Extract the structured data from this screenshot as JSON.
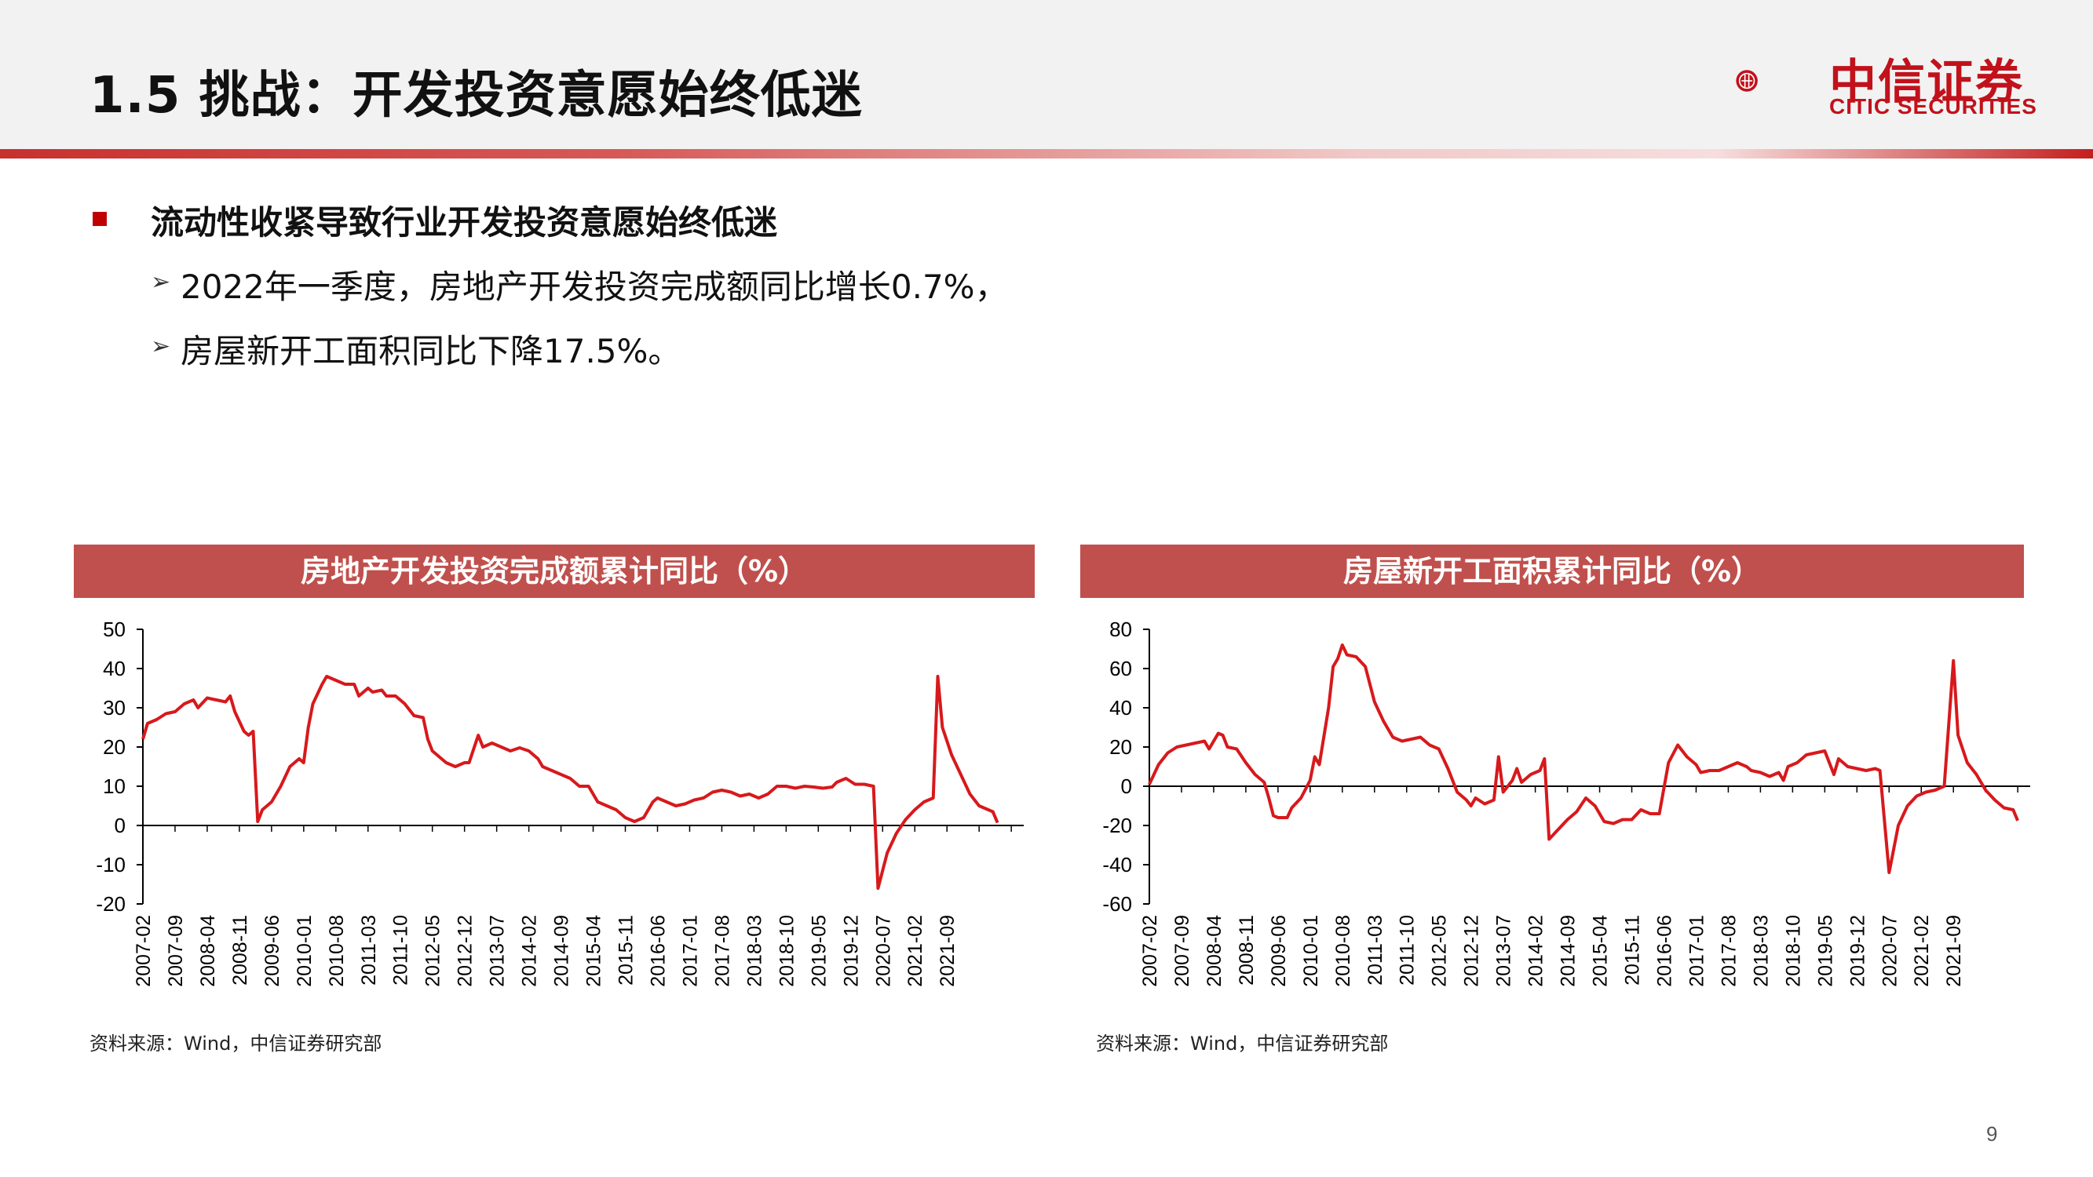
{
  "header": {
    "title": "1.5 挑战：开发投资意愿始终低迷",
    "logo_cn": "中信证券",
    "logo_en": "CITIC SECURITIES"
  },
  "body": {
    "bullet": "流动性收紧导致行业开发投资意愿始终低迷",
    "sub1": "2022年一季度，房地产开发投资完成额同比增长0.7%，",
    "sub2": "房屋新开工面积同比下降17.5%。",
    "arrow": "➢"
  },
  "page_number": "9",
  "colors": {
    "accent": "#c0504d",
    "line": "#d7191c",
    "brand": "#c1121c"
  },
  "chart_data": [
    {
      "type": "line",
      "title": "房地产开发投资完成额累计同比（%）",
      "source": "资料来源：Wind，中信证券研究部",
      "ylim": [
        -20,
        50
      ],
      "yticks": [
        50,
        40,
        30,
        20,
        10,
        0,
        -10,
        -20
      ],
      "xticks": [
        "2007-02",
        "2007-09",
        "2008-04",
        "2008-11",
        "2009-06",
        "2010-01",
        "2010-08",
        "2011-03",
        "2011-10",
        "2012-05",
        "2012-12",
        "2013-07",
        "2014-02",
        "2014-09",
        "2015-04",
        "2015-11",
        "2016-06",
        "2017-01",
        "2017-08",
        "2018-03",
        "2018-10",
        "2019-05",
        "2019-12",
        "2020-07",
        "2021-02",
        "2021-09"
      ],
      "series": [
        {
          "points": [
            [
              "2007-02",
              22
            ],
            [
              "2007-03",
              26
            ],
            [
              "2007-05",
              27
            ],
            [
              "2007-07",
              28.5
            ],
            [
              "2007-09",
              29
            ],
            [
              "2007-11",
              31
            ],
            [
              "2008-01",
              32
            ],
            [
              "2008-02",
              30
            ],
            [
              "2008-04",
              32.5
            ],
            [
              "2008-06",
              32
            ],
            [
              "2008-08",
              31.5
            ],
            [
              "2008-09",
              33
            ],
            [
              "2008-10",
              29
            ],
            [
              "2008-12",
              24
            ],
            [
              "2009-01",
              23
            ],
            [
              "2009-02",
              24
            ],
            [
              "2009-03",
              1
            ],
            [
              "2009-04",
              4
            ],
            [
              "2009-06",
              6
            ],
            [
              "2009-08",
              10
            ],
            [
              "2009-10",
              15
            ],
            [
              "2009-12",
              17
            ],
            [
              "2010-01",
              16
            ],
            [
              "2010-02",
              25
            ],
            [
              "2010-03",
              31
            ],
            [
              "2010-05",
              36
            ],
            [
              "2010-06",
              38
            ],
            [
              "2010-08",
              37
            ],
            [
              "2010-10",
              36
            ],
            [
              "2010-12",
              36
            ],
            [
              "2011-01",
              33
            ],
            [
              "2011-03",
              35
            ],
            [
              "2011-04",
              34
            ],
            [
              "2011-06",
              34.5
            ],
            [
              "2011-07",
              33
            ],
            [
              "2011-09",
              33
            ],
            [
              "2011-11",
              31
            ],
            [
              "2012-01",
              28
            ],
            [
              "2012-03",
              27.5
            ],
            [
              "2012-04",
              22
            ],
            [
              "2012-05",
              19
            ],
            [
              "2012-06",
              18
            ],
            [
              "2012-08",
              16
            ],
            [
              "2012-10",
              15
            ],
            [
              "2012-12",
              16
            ],
            [
              "2013-01",
              16
            ],
            [
              "2013-03",
              23
            ],
            [
              "2013-04",
              20
            ],
            [
              "2013-06",
              21
            ],
            [
              "2013-08",
              20
            ],
            [
              "2013-10",
              19
            ],
            [
              "2013-12",
              19.8
            ],
            [
              "2014-02",
              19
            ],
            [
              "2014-04",
              17
            ],
            [
              "2014-05",
              15
            ],
            [
              "2014-07",
              14
            ],
            [
              "2014-09",
              13
            ],
            [
              "2014-11",
              12
            ],
            [
              "2015-01",
              10
            ],
            [
              "2015-03",
              10
            ],
            [
              "2015-05",
              6
            ],
            [
              "2015-07",
              5
            ],
            [
              "2015-09",
              4
            ],
            [
              "2015-11",
              2
            ],
            [
              "2016-01",
              1
            ],
            [
              "2016-03",
              2
            ],
            [
              "2016-05",
              6
            ],
            [
              "2016-06",
              7
            ],
            [
              "2016-08",
              6
            ],
            [
              "2016-10",
              5
            ],
            [
              "2016-12",
              5.5
            ],
            [
              "2017-02",
              6.5
            ],
            [
              "2017-04",
              7
            ],
            [
              "2017-06",
              8.5
            ],
            [
              "2017-08",
              9
            ],
            [
              "2017-10",
              8.5
            ],
            [
              "2017-12",
              7.5
            ],
            [
              "2018-02",
              8
            ],
            [
              "2018-04",
              7
            ],
            [
              "2018-06",
              8
            ],
            [
              "2018-08",
              10
            ],
            [
              "2018-10",
              10
            ],
            [
              "2018-12",
              9.5
            ],
            [
              "2019-02",
              10
            ],
            [
              "2019-04",
              9.8
            ],
            [
              "2019-06",
              9.5
            ],
            [
              "2019-08",
              9.8
            ],
            [
              "2019-09",
              11
            ],
            [
              "2019-11",
              12
            ],
            [
              "2020-01",
              10.5
            ],
            [
              "2020-03",
              10.5
            ],
            [
              "2020-05",
              10
            ],
            [
              "2020-06",
              -16
            ],
            [
              "2020-08",
              -7
            ],
            [
              "2020-10",
              -2
            ],
            [
              "2020-12",
              1.5
            ],
            [
              "2021-02",
              4
            ],
            [
              "2021-04",
              6
            ],
            [
              "2021-06",
              7
            ],
            [
              "2021-07",
              38
            ],
            [
              "2021-08",
              25
            ],
            [
              "2021-10",
              18
            ],
            [
              "2021-12",
              13
            ],
            [
              "2022-02",
              8
            ],
            [
              "2022-04",
              5
            ],
            [
              "2022-06",
              4
            ],
            [
              "2022-07",
              3.5
            ],
            [
              "2022-08",
              0.7
            ]
          ]
        }
      ]
    },
    {
      "type": "line",
      "title": "房屋新开工面积累计同比（%）",
      "source": "资料来源：Wind，中信证券研究部",
      "ylim": [
        -60,
        80
      ],
      "yticks": [
        80,
        60,
        40,
        20,
        0,
        -20,
        -40,
        -60
      ],
      "xticks": [
        "2007-02",
        "2007-09",
        "2008-04",
        "2008-11",
        "2009-06",
        "2010-01",
        "2010-08",
        "2011-03",
        "2011-10",
        "2012-05",
        "2012-12",
        "2013-07",
        "2014-02",
        "2014-09",
        "2015-04",
        "2015-11",
        "2016-06",
        "2017-01",
        "2017-08",
        "2018-03",
        "2018-10",
        "2019-05",
        "2019-12",
        "2020-07",
        "2021-02",
        "2021-09"
      ],
      "series": [
        {
          "points": [
            [
              "2007-02",
              1
            ],
            [
              "2007-04",
              11
            ],
            [
              "2007-06",
              17
            ],
            [
              "2007-08",
              20
            ],
            [
              "2007-10",
              21
            ],
            [
              "2007-12",
              22
            ],
            [
              "2008-02",
              23
            ],
            [
              "2008-03",
              19
            ],
            [
              "2008-05",
              27
            ],
            [
              "2008-06",
              26
            ],
            [
              "2008-07",
              20
            ],
            [
              "2008-09",
              19
            ],
            [
              "2008-11",
              12
            ],
            [
              "2009-01",
              6
            ],
            [
              "2009-03",
              2
            ],
            [
              "2009-04",
              -6
            ],
            [
              "2009-05",
              -15
            ],
            [
              "2009-06",
              -16
            ],
            [
              "2009-08",
              -16
            ],
            [
              "2009-09",
              -11
            ],
            [
              "2009-11",
              -6
            ],
            [
              "2010-01",
              3
            ],
            [
              "2010-02",
              15
            ],
            [
              "2010-03",
              11
            ],
            [
              "2010-05",
              40
            ],
            [
              "2010-06",
              61
            ],
            [
              "2010-07",
              65
            ],
            [
              "2010-08",
              72
            ],
            [
              "2010-09",
              67
            ],
            [
              "2010-11",
              66
            ],
            [
              "2011-01",
              61
            ],
            [
              "2011-03",
              43
            ],
            [
              "2011-05",
              33
            ],
            [
              "2011-07",
              25
            ],
            [
              "2011-09",
              23
            ],
            [
              "2011-11",
              24
            ],
            [
              "2012-01",
              25
            ],
            [
              "2012-03",
              21
            ],
            [
              "2012-05",
              19
            ],
            [
              "2012-07",
              9
            ],
            [
              "2012-09",
              -3
            ],
            [
              "2012-11",
              -7
            ],
            [
              "2012-12",
              -10
            ],
            [
              "2013-01",
              -6
            ],
            [
              "2013-03",
              -9
            ],
            [
              "2013-05",
              -7
            ],
            [
              "2013-06",
              15
            ],
            [
              "2013-07",
              -3
            ],
            [
              "2013-09",
              3
            ],
            [
              "2013-10",
              9
            ],
            [
              "2013-11",
              2
            ],
            [
              "2014-01",
              6
            ],
            [
              "2014-03",
              8
            ],
            [
              "2014-04",
              14
            ],
            [
              "2014-05",
              -27
            ],
            [
              "2014-07",
              -22
            ],
            [
              "2014-09",
              -17
            ],
            [
              "2014-11",
              -13
            ],
            [
              "2015-01",
              -6
            ],
            [
              "2015-03",
              -10
            ],
            [
              "2015-05",
              -18
            ],
            [
              "2015-07",
              -19
            ],
            [
              "2015-09",
              -17
            ],
            [
              "2015-11",
              -17
            ],
            [
              "2016-01",
              -12
            ],
            [
              "2016-03",
              -14
            ],
            [
              "2016-05",
              -14
            ],
            [
              "2016-07",
              12
            ],
            [
              "2016-09",
              21
            ],
            [
              "2016-11",
              15
            ],
            [
              "2017-01",
              11
            ],
            [
              "2017-02",
              7
            ],
            [
              "2017-04",
              8
            ],
            [
              "2017-06",
              8
            ],
            [
              "2017-08",
              10
            ],
            [
              "2017-10",
              12
            ],
            [
              "2017-12",
              10
            ],
            [
              "2018-01",
              8
            ],
            [
              "2018-03",
              7
            ],
            [
              "2018-05",
              5
            ],
            [
              "2018-07",
              7
            ],
            [
              "2018-08",
              3
            ],
            [
              "2018-09",
              10
            ],
            [
              "2018-11",
              12
            ],
            [
              "2019-01",
              16
            ],
            [
              "2019-03",
              17
            ],
            [
              "2019-05",
              18
            ],
            [
              "2019-07",
              6
            ],
            [
              "2019-08",
              14
            ],
            [
              "2019-10",
              10
            ],
            [
              "2019-12",
              9
            ],
            [
              "2020-02",
              8
            ],
            [
              "2020-04",
              9
            ],
            [
              "2020-05",
              8
            ],
            [
              "2020-07",
              -44
            ],
            [
              "2020-09",
              -20
            ],
            [
              "2020-11",
              -10
            ],
            [
              "2021-01",
              -5
            ],
            [
              "2021-03",
              -3
            ],
            [
              "2021-05",
              -2
            ],
            [
              "2021-07",
              0
            ],
            [
              "2021-09",
              64
            ],
            [
              "2021-10",
              26
            ],
            [
              "2021-12",
              12
            ],
            [
              "2022-02",
              6
            ],
            [
              "2022-04",
              -2
            ],
            [
              "2022-06",
              -7
            ],
            [
              "2022-08",
              -11
            ],
            [
              "2022-10",
              -12
            ],
            [
              "2022-11",
              -17.5
            ]
          ]
        }
      ]
    }
  ]
}
